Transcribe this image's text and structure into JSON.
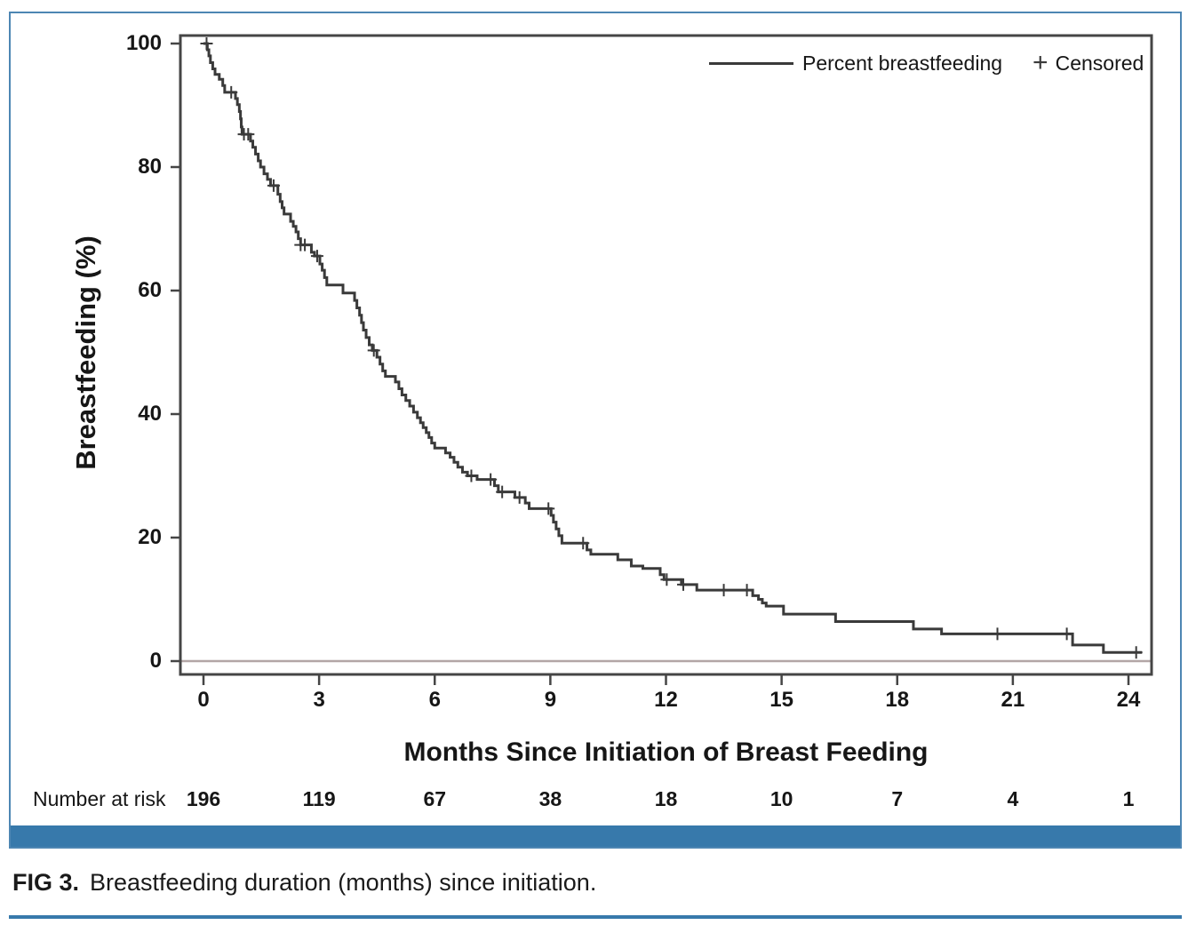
{
  "figure": {
    "caption_label": "FIG 3.",
    "caption_text": "Breastfeeding duration (months) since initiation.",
    "colors": {
      "curve": "#3a3a3a",
      "plot_frame": "#454545",
      "zero_line": "#b3a6a6",
      "accent_blue": "#3779ab",
      "frame_blue": "#4d86b3",
      "text": "#161616"
    }
  },
  "chart_data": {
    "type": "line",
    "subtype": "kaplan-meier-step",
    "title": "",
    "xlabel": "Months Since Initiation of Breast Feeding",
    "ylabel": "Breastfeeding (%)",
    "xlim": [
      -0.6,
      24.6
    ],
    "ylim": [
      -2.2,
      103.5
    ],
    "x_ticks": [
      0,
      3,
      6,
      9,
      12,
      15,
      18,
      21,
      24
    ],
    "y_ticks": [
      0,
      20,
      40,
      60,
      80,
      100
    ],
    "grid": false,
    "zero_reference_line": true,
    "legend_position": "top-right-inside",
    "series": [
      {
        "name": "Percent breastfeeding",
        "end_time": 24.35,
        "steps": [
          [
            0,
            100
          ],
          [
            0.1,
            99
          ],
          [
            0.14,
            98
          ],
          [
            0.18,
            96.9
          ],
          [
            0.24,
            95.9
          ],
          [
            0.3,
            95
          ],
          [
            0.41,
            94.2
          ],
          [
            0.5,
            93.2
          ],
          [
            0.55,
            92.1
          ],
          [
            0.83,
            91.1
          ],
          [
            0.88,
            90.1
          ],
          [
            0.93,
            89
          ],
          [
            0.96,
            87.8
          ],
          [
            0.98,
            86.5
          ],
          [
            1.0,
            85.3
          ],
          [
            1.22,
            84.2
          ],
          [
            1.28,
            83.2
          ],
          [
            1.35,
            82.1
          ],
          [
            1.42,
            81
          ],
          [
            1.48,
            80
          ],
          [
            1.57,
            78.9
          ],
          [
            1.66,
            78
          ],
          [
            1.74,
            77
          ],
          [
            1.93,
            75.6
          ],
          [
            1.99,
            74.4
          ],
          [
            2.04,
            73.4
          ],
          [
            2.09,
            72.4
          ],
          [
            2.26,
            71.2
          ],
          [
            2.33,
            70.4
          ],
          [
            2.4,
            69.5
          ],
          [
            2.46,
            68.4
          ],
          [
            2.52,
            67.4
          ],
          [
            2.8,
            66.2
          ],
          [
            2.88,
            65.6
          ],
          [
            3.02,
            64.3
          ],
          [
            3.08,
            63.3
          ],
          [
            3.14,
            62.1
          ],
          [
            3.2,
            60.9
          ],
          [
            3.62,
            59.6
          ],
          [
            3.92,
            58.4
          ],
          [
            3.98,
            57.2
          ],
          [
            4.05,
            56
          ],
          [
            4.1,
            54.8
          ],
          [
            4.15,
            53.6
          ],
          [
            4.22,
            52.4
          ],
          [
            4.3,
            51.2
          ],
          [
            4.38,
            50.3
          ],
          [
            4.5,
            49.2
          ],
          [
            4.58,
            48.1
          ],
          [
            4.65,
            47
          ],
          [
            4.72,
            46.1
          ],
          [
            4.98,
            45.2
          ],
          [
            5.07,
            44.1
          ],
          [
            5.15,
            43.1
          ],
          [
            5.25,
            42.2
          ],
          [
            5.35,
            41.3
          ],
          [
            5.45,
            40.3
          ],
          [
            5.55,
            39.4
          ],
          [
            5.63,
            38.6
          ],
          [
            5.7,
            37.8
          ],
          [
            5.78,
            37
          ],
          [
            5.85,
            36.2
          ],
          [
            5.92,
            35.3
          ],
          [
            6,
            34.5
          ],
          [
            6.28,
            33.7
          ],
          [
            6.4,
            33
          ],
          [
            6.5,
            32.2
          ],
          [
            6.6,
            31.4
          ],
          [
            6.72,
            30.6
          ],
          [
            6.85,
            30
          ],
          [
            7.1,
            29.4
          ],
          [
            7.55,
            28.4
          ],
          [
            7.65,
            27.4
          ],
          [
            8.08,
            26.5
          ],
          [
            8.35,
            25.6
          ],
          [
            8.45,
            24.7
          ],
          [
            9.02,
            23.6
          ],
          [
            9.08,
            22.5
          ],
          [
            9.15,
            21.4
          ],
          [
            9.22,
            20.3
          ],
          [
            9.3,
            19.1
          ],
          [
            9.95,
            18
          ],
          [
            10.05,
            17.3
          ],
          [
            10.75,
            16.4
          ],
          [
            11.1,
            15.4
          ],
          [
            11.4,
            15
          ],
          [
            11.85,
            14
          ],
          [
            11.95,
            13.2
          ],
          [
            12.4,
            12.4
          ],
          [
            12.8,
            11.5
          ],
          [
            14.25,
            10.6
          ],
          [
            14.4,
            10
          ],
          [
            14.5,
            9.4
          ],
          [
            14.6,
            8.9
          ],
          [
            15.05,
            7.6
          ],
          [
            16.4,
            6.4
          ],
          [
            18.42,
            5.2
          ],
          [
            19.15,
            4.4
          ],
          [
            22.55,
            2.6
          ],
          [
            23.35,
            1.4
          ]
        ]
      }
    ],
    "censored": {
      "name": "Censored",
      "marker": "plus",
      "points": [
        [
          0.08,
          100
        ],
        [
          0.72,
          92.1
        ],
        [
          1.05,
          85.3
        ],
        [
          1.16,
          85.3
        ],
        [
          1.82,
          77
        ],
        [
          2.52,
          67.4
        ],
        [
          2.63,
          67.4
        ],
        [
          2.95,
          65.6
        ],
        [
          4.42,
          50.3
        ],
        [
          6.95,
          30
        ],
        [
          7.45,
          29.4
        ],
        [
          7.75,
          27.4
        ],
        [
          8.2,
          26.5
        ],
        [
          8.95,
          24.7
        ],
        [
          9.85,
          19.1
        ],
        [
          12.02,
          13.2
        ],
        [
          12.45,
          12.4
        ],
        [
          13.5,
          11.5
        ],
        [
          14.1,
          11.5
        ],
        [
          20.6,
          4.4
        ],
        [
          22.4,
          4.4
        ],
        [
          24.2,
          1.4
        ]
      ]
    },
    "number_at_risk": {
      "label": "Number at risk",
      "times": [
        0,
        3,
        6,
        9,
        12,
        15,
        18,
        21,
        24
      ],
      "values": [
        196,
        119,
        67,
        38,
        18,
        10,
        7,
        4,
        1
      ]
    }
  },
  "legend": {
    "line_label": "Percent breastfeeding",
    "censor_symbol": "+",
    "censor_label": "Censored"
  }
}
